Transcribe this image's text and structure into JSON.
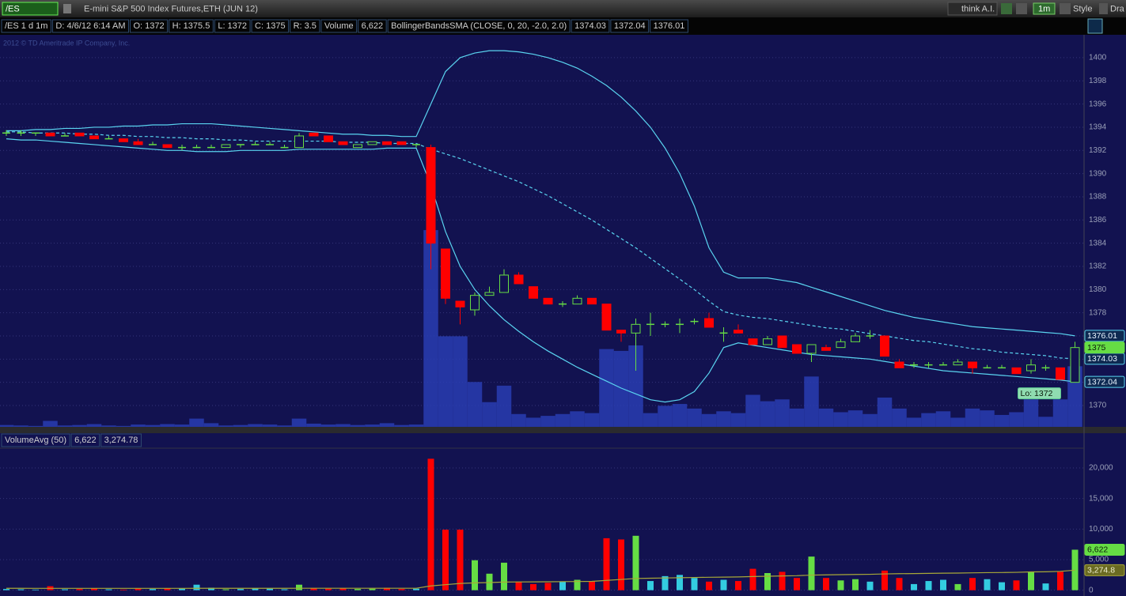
{
  "toolbar": {
    "symbol": "/ES",
    "description": "E-mini S&P 500 Index Futures,ETH (JUN 12)",
    "buttons": [
      "think A.I.",
      "1m",
      "Style",
      "Dra"
    ]
  },
  "header": {
    "cells": [
      "/ES 1 d 1m",
      "D: 4/6/12 6:14 AM",
      "O: 1372",
      "H: 1375.5",
      "L: 1372",
      "C: 1375",
      "R: 3.5",
      "Volume",
      "6,622",
      "BollingerBandsSMA (CLOSE, 0, 20, -2.0, 2.0)"
    ]
  },
  "copyright": "2012 © TD Ameritrade IP Company, Inc.",
  "chart_data": [
    {
      "type": "candlestick",
      "ylim": [
        1368.16,
        1401.7
      ],
      "yticks": [
        1370,
        1372,
        1374,
        1376,
        1378,
        1380,
        1382,
        1384,
        1386,
        1388,
        1390,
        1392,
        1394,
        1396,
        1398,
        1400
      ],
      "grid": true,
      "up_color": "#66dd44",
      "down_color": "#ff0000",
      "flat_color": "#33cce0",
      "open": [
        1393.5,
        1393.5,
        1393.5,
        1393.5,
        1393.25,
        1393.5,
        1393.25,
        1393,
        1393,
        1392.75,
        1392.5,
        1392.5,
        1392.25,
        1392.25,
        1392.25,
        1392.25,
        1392.5,
        1392.5,
        1392.5,
        1392.25,
        1392.25,
        1393.5,
        1393.25,
        1392.75,
        1392.25,
        1392.5,
        1392.75,
        1392.75,
        1392.5,
        1392.25,
        1383.5,
        1379,
        1378.25,
        1379.5,
        1379.75,
        1381.25,
        1380.25,
        1379.25,
        1378.75,
        1378.75,
        1379.25,
        1378.75,
        1376.5,
        1376.25,
        1377,
        1377,
        1377,
        1377.25,
        1377.5,
        1376.25,
        1376.5,
        1375.75,
        1375.25,
        1376,
        1375.25,
        1374.5,
        1375,
        1375,
        1375.5,
        1376,
        1376,
        1373.75,
        1373.5,
        1373.5,
        1373.5,
        1373.5,
        1373.75,
        1373.25,
        1373.25,
        1373.25,
        1373,
        1373.25,
        1373.25,
        1372
      ],
      "high": [
        1393.75,
        1393.75,
        1393.5,
        1393.5,
        1393.5,
        1393.5,
        1393.25,
        1393.25,
        1393,
        1393,
        1392.75,
        1392.5,
        1392.5,
        1392.5,
        1392.5,
        1392.5,
        1392.5,
        1392.75,
        1392.75,
        1392.5,
        1393.5,
        1393.5,
        1393.25,
        1392.75,
        1392.5,
        1392.75,
        1392.75,
        1392.75,
        1392.5,
        1392.5,
        1383.5,
        1379,
        1379.75,
        1380.25,
        1381.75,
        1381.5,
        1380.25,
        1379.25,
        1379,
        1379.5,
        1379.25,
        1378.75,
        1376.5,
        1377.5,
        1378,
        1377.25,
        1377.5,
        1377.5,
        1378,
        1376.75,
        1377,
        1375.75,
        1376,
        1376,
        1375.25,
        1375.25,
        1375.25,
        1375.75,
        1376.25,
        1376.5,
        1376,
        1374,
        1373.75,
        1373.75,
        1373.75,
        1374,
        1373.75,
        1373.5,
        1373.5,
        1373.25,
        1374,
        1373.5,
        1373.25,
        1375.5
      ],
      "low": [
        1393.25,
        1393.25,
        1393.25,
        1393.25,
        1393.25,
        1393.25,
        1393,
        1393,
        1392.75,
        1392.5,
        1392.5,
        1392.25,
        1392,
        1392.25,
        1392.25,
        1392.25,
        1392.25,
        1392.5,
        1392.5,
        1392.25,
        1392.25,
        1393.25,
        1392.75,
        1392.5,
        1392.25,
        1392.5,
        1392.5,
        1392.5,
        1392.25,
        1381.75,
        1378.75,
        1377,
        1377.75,
        1379.5,
        1379.75,
        1380.5,
        1379.25,
        1378.75,
        1378.5,
        1378.75,
        1378.75,
        1376.5,
        1375.5,
        1373,
        1376,
        1376.75,
        1376.25,
        1377,
        1376.75,
        1375.5,
        1376.25,
        1375.25,
        1375.25,
        1375,
        1374.5,
        1373.75,
        1374.75,
        1375,
        1375.5,
        1375.75,
        1374.25,
        1373.25,
        1373.25,
        1373.25,
        1373.5,
        1373.5,
        1372.75,
        1373.25,
        1373.25,
        1372.75,
        1372.75,
        1373,
        1372.25,
        1372
      ],
      "close": [
        1393.5,
        1393.5,
        1393.5,
        1393.25,
        1393.25,
        1393.25,
        1393,
        1393,
        1392.75,
        1392.5,
        1392.5,
        1392.25,
        1392.25,
        1392.25,
        1392.25,
        1392.5,
        1392.5,
        1392.5,
        1392.5,
        1392.25,
        1393.25,
        1393.25,
        1392.75,
        1392.5,
        1392.5,
        1392.75,
        1392.5,
        1392.5,
        1392.5,
        1384,
        1379.25,
        1378.5,
        1379.5,
        1379.75,
        1381.25,
        1380.5,
        1379.25,
        1378.75,
        1378.75,
        1379.25,
        1378.75,
        1376.5,
        1376.25,
        1377,
        1377,
        1377,
        1377,
        1377.25,
        1376.75,
        1376.25,
        1376.25,
        1375.25,
        1375.75,
        1375,
        1374.5,
        1375.25,
        1374.75,
        1375.5,
        1376,
        1376,
        1374.25,
        1373.25,
        1373.5,
        1373.5,
        1373.5,
        1373.75,
        1373.25,
        1373.25,
        1373.25,
        1372.75,
        1373.5,
        1373.25,
        1372.25,
        1375
      ],
      "bands": {
        "upper": {
          "color": "#5ad4f0",
          "dashed": false,
          "values": [
            1393.7,
            1393.7,
            1393.8,
            1393.8,
            1393.9,
            1393.9,
            1394.0,
            1394.0,
            1394.1,
            1394.1,
            1394.2,
            1394.2,
            1394.3,
            1394.3,
            1394.3,
            1394.2,
            1394.1,
            1394.0,
            1393.9,
            1393.8,
            1393.7,
            1393.6,
            1393.5,
            1393.4,
            1393.4,
            1393.3,
            1393.3,
            1393.2,
            1393.2,
            1396.0,
            1398.8,
            1400.0,
            1400.4,
            1400.6,
            1400.6,
            1400.5,
            1400.3,
            1400.0,
            1399.6,
            1399.1,
            1398.4,
            1397.6,
            1396.6,
            1395.4,
            1394.0,
            1392.2,
            1390.0,
            1387.2,
            1383.6,
            1381.5,
            1381.0,
            1381.0,
            1381.0,
            1380.8,
            1380.6,
            1380.2,
            1379.8,
            1379.4,
            1379.0,
            1378.6,
            1378.2,
            1377.9,
            1377.6,
            1377.4,
            1377.2,
            1377.0,
            1376.8,
            1376.7,
            1376.6,
            1376.5,
            1376.4,
            1376.3,
            1376.2,
            1376.01
          ]
        },
        "middle": {
          "color": "#5ad4f0",
          "dashed": true,
          "values": [
            1393.6,
            1393.6,
            1393.5,
            1393.5,
            1393.5,
            1393.4,
            1393.4,
            1393.3,
            1393.3,
            1393.2,
            1393.2,
            1393.1,
            1393.1,
            1393.0,
            1393.0,
            1392.9,
            1392.9,
            1392.8,
            1392.8,
            1392.8,
            1392.8,
            1392.8,
            1392.8,
            1392.7,
            1392.7,
            1392.7,
            1392.6,
            1392.6,
            1392.6,
            1392.1,
            1391.7,
            1391.3,
            1390.8,
            1390.3,
            1389.8,
            1389.3,
            1388.7,
            1388.1,
            1387.4,
            1386.7,
            1386.0,
            1385.2,
            1384.4,
            1383.6,
            1382.7,
            1381.8,
            1380.9,
            1380.0,
            1379.0,
            1378.1,
            1377.8,
            1377.6,
            1377.5,
            1377.3,
            1377.1,
            1376.9,
            1376.7,
            1376.6,
            1376.4,
            1376.2,
            1376.0,
            1375.8,
            1375.6,
            1375.5,
            1375.3,
            1375.1,
            1374.9,
            1374.8,
            1374.6,
            1374.5,
            1374.4,
            1374.3,
            1374.1,
            1374.03
          ]
        },
        "lower": {
          "color": "#5ad4f0",
          "dashed": false,
          "values": [
            1393.0,
            1392.9,
            1392.9,
            1392.8,
            1392.7,
            1392.6,
            1392.5,
            1392.4,
            1392.3,
            1392.2,
            1392.1,
            1392.0,
            1392.0,
            1391.9,
            1391.9,
            1391.9,
            1392.0,
            1392.0,
            1392.0,
            1392.0,
            1392.1,
            1392.1,
            1392.1,
            1392.1,
            1392.1,
            1392.1,
            1392.2,
            1392.2,
            1392.2,
            1389.0,
            1385.0,
            1382.0,
            1380.0,
            1378.6,
            1377.4,
            1376.4,
            1375.5,
            1374.7,
            1374.0,
            1373.3,
            1372.7,
            1372.1,
            1371.5,
            1371.0,
            1370.5,
            1370.3,
            1370.5,
            1371.2,
            1372.8,
            1375.0,
            1375.4,
            1375.2,
            1375.0,
            1374.8,
            1374.6,
            1374.4,
            1374.3,
            1374.2,
            1374.1,
            1374.0,
            1373.8,
            1373.6,
            1373.4,
            1373.2,
            1373.0,
            1372.9,
            1372.8,
            1372.7,
            1372.6,
            1372.5,
            1372.4,
            1372.3,
            1372.2,
            1372.04
          ]
        }
      },
      "volume_overlay_color": "#2a40b8",
      "volume_overlay_ylim": [
        0,
        42500
      ],
      "low_label": "Lo: 1372"
    },
    {
      "type": "volume",
      "header": [
        "VolumeAvg (50)",
        "6,622",
        "3,274.78"
      ],
      "ylim": [
        -950,
        23100
      ],
      "yticks": [
        0,
        {
          "value": 5000,
          "label": "5,000"
        },
        {
          "value": 10000,
          "label": "10,000"
        },
        {
          "value": 15000,
          "label": "15,000"
        },
        {
          "value": 20000,
          "label": "20,000"
        }
      ],
      "grid": true,
      "values": [
        200,
        150,
        100,
        650,
        150,
        200,
        300,
        150,
        100,
        250,
        200,
        300,
        250,
        900,
        400,
        150,
        200,
        300,
        250,
        150,
        900,
        350,
        250,
        300,
        200,
        250,
        400,
        200,
        250,
        21500,
        9900,
        9900,
        4900,
        2700,
        4500,
        1400,
        1000,
        1200,
        1400,
        1700,
        1500,
        8500,
        8300,
        8900,
        1500,
        2300,
        2500,
        2000,
        1400,
        1700,
        1500,
        3500,
        2800,
        3000,
        2000,
        5500,
        2000,
        1600,
        1800,
        1400,
        3200,
        2000,
        1000,
        1500,
        1700,
        1000,
        2000,
        1800,
        1300,
        1600,
        3000,
        1100,
        3000,
        6622
      ],
      "value_label": "6,622",
      "avg": {
        "color": "#a8a838",
        "label": "3,274.8",
        "values": [
          310,
          310,
          305,
          305,
          300,
          300,
          300,
          300,
          300,
          300,
          300,
          300,
          300,
          310,
          310,
          310,
          310,
          310,
          310,
          310,
          320,
          320,
          320,
          320,
          320,
          320,
          320,
          320,
          320,
          700,
          900,
          1100,
          1200,
          1250,
          1330,
          1350,
          1360,
          1380,
          1400,
          1420,
          1440,
          1600,
          1760,
          1920,
          1960,
          2000,
          2040,
          2080,
          2110,
          2140,
          2170,
          2230,
          2280,
          2330,
          2370,
          2470,
          2510,
          2540,
          2570,
          2600,
          2660,
          2700,
          2720,
          2750,
          2780,
          2800,
          2840,
          2870,
          2890,
          2920,
          2990,
          3010,
          3080,
          3274.78
        ]
      }
    }
  ]
}
